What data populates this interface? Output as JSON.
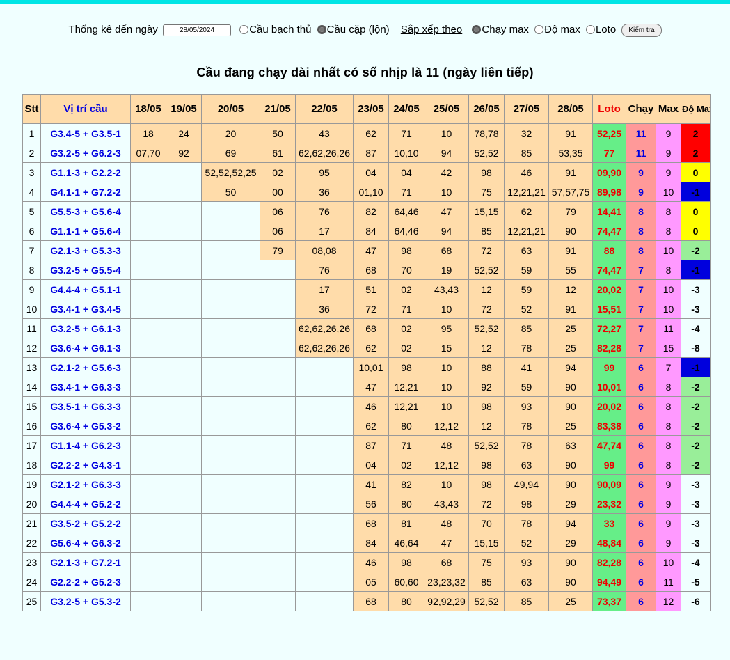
{
  "controls": {
    "label_stat": "Thống kê đến ngày",
    "date_value": "28/05/2024",
    "radio_bach_thu": "Cầu bạch thủ",
    "radio_cap": "Cầu cặp (lộn)",
    "sort_label": "Sắp xếp theo",
    "radio_chay_max": "Chạy max",
    "radio_do_max": "Độ max",
    "radio_loto": "Loto",
    "check_button": "Kiểm tra"
  },
  "title": "Cầu đang chạy dài nhất có số nhịp là 11 (ngày liên tiếp)",
  "headers": [
    "Stt",
    "Vị trí cầu",
    "18/05",
    "19/05",
    "20/05",
    "21/05",
    "22/05",
    "23/05",
    "24/05",
    "25/05",
    "26/05",
    "27/05",
    "28/05",
    "Loto",
    "Chạy",
    "Max",
    "Độ Max"
  ],
  "rows": [
    {
      "stt": "1",
      "pos": "G3.4-5 + G3.5-1",
      "days": [
        "18",
        "24",
        "20",
        "50",
        "43",
        "62",
        "71",
        "10",
        "78,78",
        "32",
        "91"
      ],
      "loto": "52,25",
      "chay": "11",
      "max": "9",
      "domax": "2",
      "domax_color": "red"
    },
    {
      "stt": "2",
      "pos": "G3.2-5 + G6.2-3",
      "days": [
        "07,70",
        "92",
        "69",
        "61",
        "62,62,26,26",
        "87",
        "10,10",
        "94",
        "52,52",
        "85",
        "53,35"
      ],
      "loto": "77",
      "chay": "11",
      "max": "9",
      "domax": "2",
      "domax_color": "red"
    },
    {
      "stt": "3",
      "pos": "G1.1-3 + G2.2-2",
      "days": [
        "",
        "",
        "52,52,52,25",
        "02",
        "95",
        "04",
        "04",
        "42",
        "98",
        "46",
        "91"
      ],
      "loto": "09,90",
      "chay": "9",
      "max": "9",
      "domax": "0",
      "domax_color": "yellow"
    },
    {
      "stt": "4",
      "pos": "G4.1-1 + G7.2-2",
      "days": [
        "",
        "",
        "50",
        "00",
        "36",
        "01,10",
        "71",
        "10",
        "75",
        "12,21,21",
        "57,57,75"
      ],
      "loto": "89,98",
      "chay": "9",
      "max": "10",
      "domax": "-1",
      "domax_color": "blue"
    },
    {
      "stt": "5",
      "pos": "G5.5-3 + G5.6-4",
      "days": [
        "",
        "",
        "",
        "06",
        "76",
        "82",
        "64,46",
        "47",
        "15,15",
        "62",
        "79"
      ],
      "loto": "14,41",
      "chay": "8",
      "max": "8",
      "domax": "0",
      "domax_color": "yellow"
    },
    {
      "stt": "6",
      "pos": "G1.1-1 + G5.6-4",
      "days": [
        "",
        "",
        "",
        "06",
        "17",
        "84",
        "64,46",
        "94",
        "85",
        "12,21,21",
        "90"
      ],
      "loto": "74,47",
      "chay": "8",
      "max": "8",
      "domax": "0",
      "domax_color": "yellow"
    },
    {
      "stt": "7",
      "pos": "G2.1-3 + G5.3-3",
      "days": [
        "",
        "",
        "",
        "79",
        "08,08",
        "47",
        "98",
        "68",
        "72",
        "63",
        "91"
      ],
      "loto": "88",
      "chay": "8",
      "max": "10",
      "domax": "-2",
      "domax_color": "green"
    },
    {
      "stt": "8",
      "pos": "G3.2-5 + G5.5-4",
      "days": [
        "",
        "",
        "",
        "",
        "76",
        "68",
        "70",
        "19",
        "52,52",
        "59",
        "55"
      ],
      "loto": "74,47",
      "chay": "7",
      "max": "8",
      "domax": "-1",
      "domax_color": "blue"
    },
    {
      "stt": "9",
      "pos": "G4.4-4 + G5.1-1",
      "days": [
        "",
        "",
        "",
        "",
        "17",
        "51",
        "02",
        "43,43",
        "12",
        "59",
        "12"
      ],
      "loto": "20,02",
      "chay": "7",
      "max": "10",
      "domax": "-3",
      "domax_color": "none"
    },
    {
      "stt": "10",
      "pos": "G3.4-1 + G3.4-5",
      "days": [
        "",
        "",
        "",
        "",
        "36",
        "72",
        "71",
        "10",
        "72",
        "52",
        "91"
      ],
      "loto": "15,51",
      "chay": "7",
      "max": "10",
      "domax": "-3",
      "domax_color": "none"
    },
    {
      "stt": "11",
      "pos": "G3.2-5 + G6.1-3",
      "days": [
        "",
        "",
        "",
        "",
        "62,62,26,26",
        "68",
        "02",
        "95",
        "52,52",
        "85",
        "25"
      ],
      "loto": "72,27",
      "chay": "7",
      "max": "11",
      "domax": "-4",
      "domax_color": "none"
    },
    {
      "stt": "12",
      "pos": "G3.6-4 + G6.1-3",
      "days": [
        "",
        "",
        "",
        "",
        "62,62,26,26",
        "62",
        "02",
        "15",
        "12",
        "78",
        "25"
      ],
      "loto": "82,28",
      "chay": "7",
      "max": "15",
      "domax": "-8",
      "domax_color": "none"
    },
    {
      "stt": "13",
      "pos": "G2.1-2 + G5.6-3",
      "days": [
        "",
        "",
        "",
        "",
        "",
        "10,01",
        "98",
        "10",
        "88",
        "41",
        "94"
      ],
      "loto": "99",
      "chay": "6",
      "max": "7",
      "domax": "-1",
      "domax_color": "blue"
    },
    {
      "stt": "14",
      "pos": "G3.4-1 + G6.3-3",
      "days": [
        "",
        "",
        "",
        "",
        "",
        "47",
        "12,21",
        "10",
        "92",
        "59",
        "90"
      ],
      "loto": "10,01",
      "chay": "6",
      "max": "8",
      "domax": "-2",
      "domax_color": "green"
    },
    {
      "stt": "15",
      "pos": "G3.5-1 + G6.3-3",
      "days": [
        "",
        "",
        "",
        "",
        "",
        "46",
        "12,21",
        "10",
        "98",
        "93",
        "90"
      ],
      "loto": "20,02",
      "chay": "6",
      "max": "8",
      "domax": "-2",
      "domax_color": "green"
    },
    {
      "stt": "16",
      "pos": "G3.6-4 + G5.3-2",
      "days": [
        "",
        "",
        "",
        "",
        "",
        "62",
        "80",
        "12,12",
        "12",
        "78",
        "25"
      ],
      "loto": "83,38",
      "chay": "6",
      "max": "8",
      "domax": "-2",
      "domax_color": "green"
    },
    {
      "stt": "17",
      "pos": "G1.1-4 + G6.2-3",
      "days": [
        "",
        "",
        "",
        "",
        "",
        "87",
        "71",
        "48",
        "52,52",
        "78",
        "63"
      ],
      "loto": "47,74",
      "chay": "6",
      "max": "8",
      "domax": "-2",
      "domax_color": "green"
    },
    {
      "stt": "18",
      "pos": "G2.2-2 + G4.3-1",
      "days": [
        "",
        "",
        "",
        "",
        "",
        "04",
        "02",
        "12,12",
        "98",
        "63",
        "90"
      ],
      "loto": "99",
      "chay": "6",
      "max": "8",
      "domax": "-2",
      "domax_color": "green"
    },
    {
      "stt": "19",
      "pos": "G2.1-2 + G6.3-3",
      "days": [
        "",
        "",
        "",
        "",
        "",
        "41",
        "82",
        "10",
        "98",
        "49,94",
        "90"
      ],
      "loto": "90,09",
      "chay": "6",
      "max": "9",
      "domax": "-3",
      "domax_color": "none"
    },
    {
      "stt": "20",
      "pos": "G4.4-4 + G5.2-2",
      "days": [
        "",
        "",
        "",
        "",
        "",
        "56",
        "80",
        "43,43",
        "72",
        "98",
        "29"
      ],
      "loto": "23,32",
      "chay": "6",
      "max": "9",
      "domax": "-3",
      "domax_color": "none"
    },
    {
      "stt": "21",
      "pos": "G3.5-2 + G5.2-2",
      "days": [
        "",
        "",
        "",
        "",
        "",
        "68",
        "81",
        "48",
        "70",
        "78",
        "94"
      ],
      "loto": "33",
      "chay": "6",
      "max": "9",
      "domax": "-3",
      "domax_color": "none"
    },
    {
      "stt": "22",
      "pos": "G5.6-4 + G6.3-2",
      "days": [
        "",
        "",
        "",
        "",
        "",
        "84",
        "46,64",
        "47",
        "15,15",
        "52",
        "29"
      ],
      "loto": "48,84",
      "chay": "6",
      "max": "9",
      "domax": "-3",
      "domax_color": "none"
    },
    {
      "stt": "23",
      "pos": "G2.1-3 + G7.2-1",
      "days": [
        "",
        "",
        "",
        "",
        "",
        "46",
        "98",
        "68",
        "75",
        "93",
        "90"
      ],
      "loto": "82,28",
      "chay": "6",
      "max": "10",
      "domax": "-4",
      "domax_color": "none"
    },
    {
      "stt": "24",
      "pos": "G2.2-2 + G5.2-3",
      "days": [
        "",
        "",
        "",
        "",
        "",
        "05",
        "60,60",
        "23,23,32",
        "85",
        "63",
        "90"
      ],
      "loto": "94,49",
      "chay": "6",
      "max": "11",
      "domax": "-5",
      "domax_color": "none"
    },
    {
      "stt": "25",
      "pos": "G3.2-5 + G5.3-2",
      "days": [
        "",
        "",
        "",
        "",
        "",
        "68",
        "80",
        "92,92,29",
        "52,52",
        "85",
        "25"
      ],
      "loto": "73,37",
      "chay": "6",
      "max": "12",
      "domax": "-6",
      "domax_color": "none"
    }
  ]
}
